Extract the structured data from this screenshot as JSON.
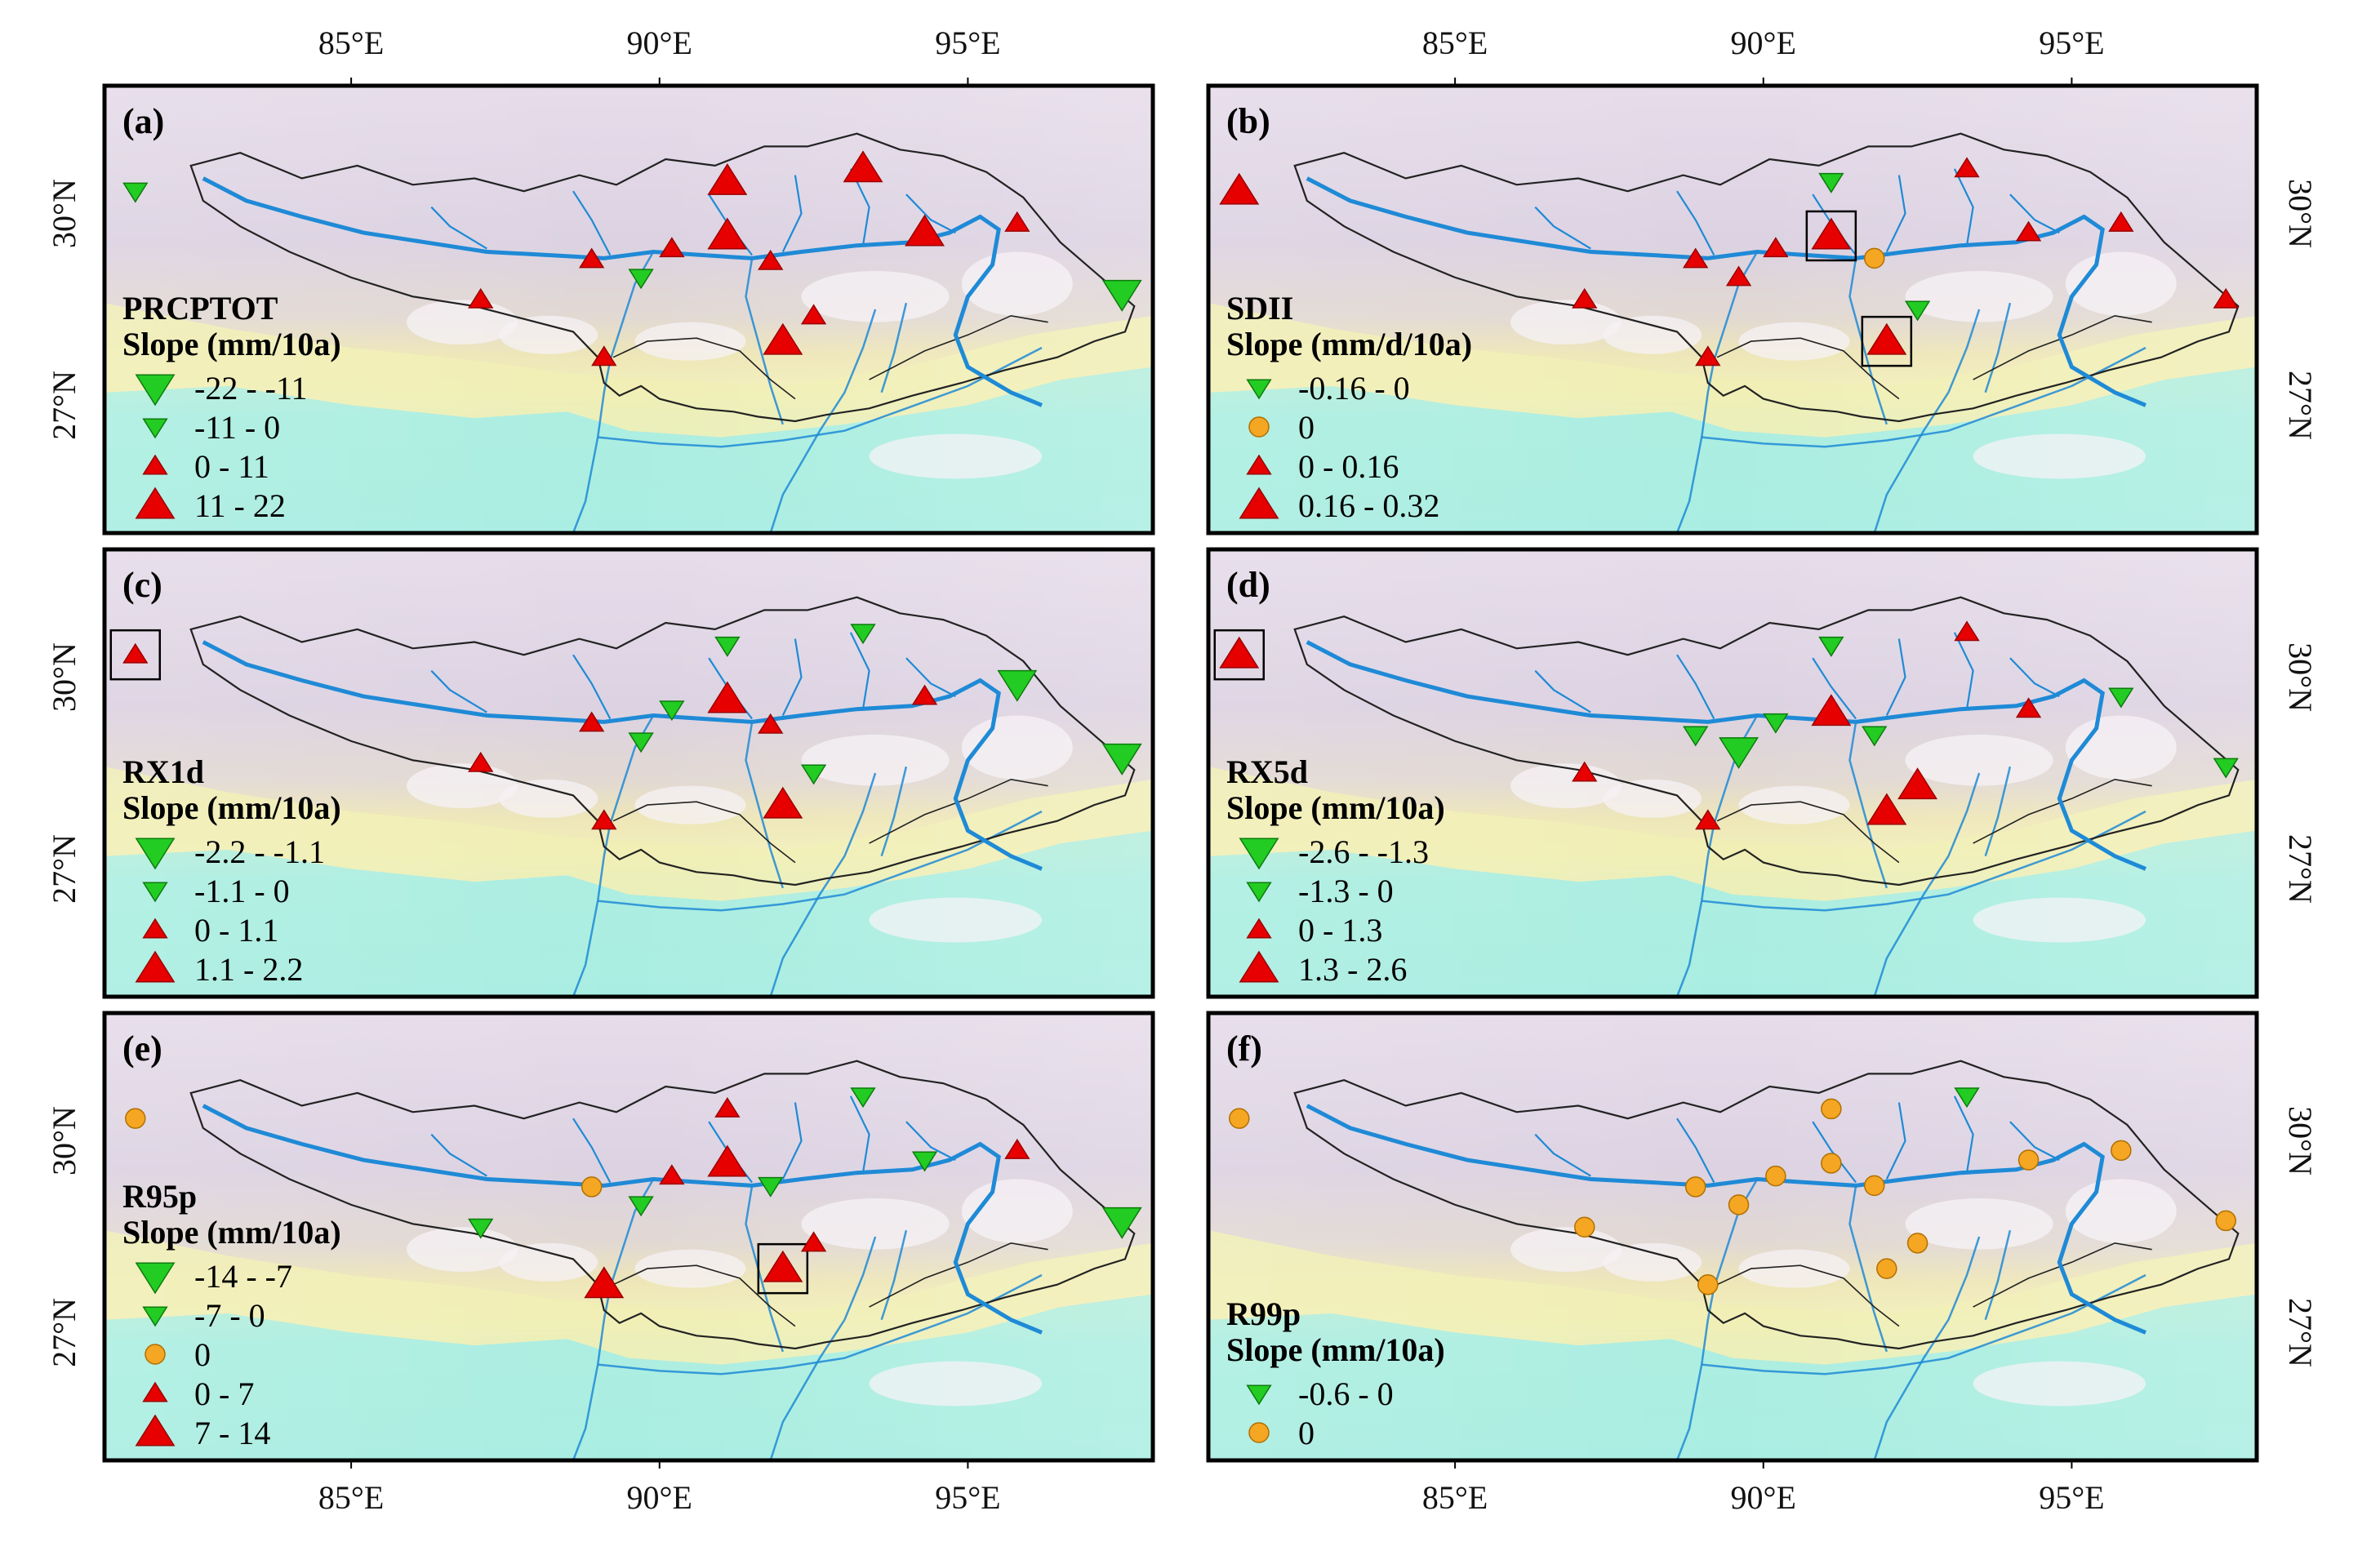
{
  "axes": {
    "lon_ticks": [
      {
        "label": "85°E",
        "lon": 85
      },
      {
        "label": "90°E",
        "lon": 90
      },
      {
        "label": "95°E",
        "lon": 95
      }
    ],
    "lat_ticks": [
      {
        "label": "30°N",
        "lat": 30
      },
      {
        "label": "27°N",
        "lat": 27
      }
    ],
    "lon_range": [
      81,
      98
    ],
    "lat_range": [
      25,
      32
    ]
  },
  "colors": {
    "increase": "#e60000",
    "decrease": "#22cc22",
    "zero": "#f5a623",
    "river": "#1f8ad6",
    "boundary": "#222222",
    "frame": "#000000"
  },
  "panels": [
    {
      "letter": "(a)",
      "title_lines": [
        "PRCPTOT",
        "Slope (mm/10a)"
      ],
      "legend_position": "lower-left",
      "legend": [
        {
          "symbol": "down",
          "size": "large",
          "label": "-22 - -11"
        },
        {
          "symbol": "down",
          "size": "small",
          "label": "-11 - 0"
        },
        {
          "symbol": "up",
          "size": "small",
          "label": "0 - 11"
        },
        {
          "symbol": "up",
          "size": "large",
          "label": "11 - 22"
        }
      ],
      "stations": [
        {
          "lon": 81.5,
          "lat": 30.35,
          "symbol": "down",
          "size": "small",
          "sig": false
        },
        {
          "lon": 87.1,
          "lat": 28.65,
          "symbol": "up",
          "size": "small",
          "sig": false
        },
        {
          "lon": 88.9,
          "lat": 29.28,
          "symbol": "up",
          "size": "small",
          "sig": false
        },
        {
          "lon": 89.7,
          "lat": 29.0,
          "symbol": "down",
          "size": "small",
          "sig": false
        },
        {
          "lon": 90.2,
          "lat": 29.45,
          "symbol": "up",
          "size": "small",
          "sig": false
        },
        {
          "lon": 89.1,
          "lat": 27.75,
          "symbol": "up",
          "size": "small",
          "sig": false
        },
        {
          "lon": 91.1,
          "lat": 30.5,
          "symbol": "up",
          "size": "large",
          "sig": false
        },
        {
          "lon": 91.1,
          "lat": 29.65,
          "symbol": "up",
          "size": "large",
          "sig": false
        },
        {
          "lon": 91.8,
          "lat": 29.25,
          "symbol": "up",
          "size": "small",
          "sig": false
        },
        {
          "lon": 92.0,
          "lat": 28.0,
          "symbol": "up",
          "size": "large",
          "sig": false
        },
        {
          "lon": 92.5,
          "lat": 28.4,
          "symbol": "up",
          "size": "small",
          "sig": false
        },
        {
          "lon": 93.3,
          "lat": 30.7,
          "symbol": "up",
          "size": "large",
          "sig": false
        },
        {
          "lon": 94.3,
          "lat": 29.7,
          "symbol": "up",
          "size": "large",
          "sig": false
        },
        {
          "lon": 95.8,
          "lat": 29.85,
          "symbol": "up",
          "size": "small",
          "sig": false
        },
        {
          "lon": 97.5,
          "lat": 28.75,
          "symbol": "down",
          "size": "large",
          "sig": false
        }
      ]
    },
    {
      "letter": "(b)",
      "title_lines": [
        "SDII",
        "Slope (mm/d/10a)"
      ],
      "legend_position": "lower-left",
      "legend": [
        {
          "symbol": "down",
          "size": "small",
          "label": "-0.16 - 0"
        },
        {
          "symbol": "circle",
          "size": "small",
          "label": "0"
        },
        {
          "symbol": "up",
          "size": "small",
          "label": "0 - 0.16"
        },
        {
          "symbol": "up",
          "size": "large",
          "label": "0.16 - 0.32"
        }
      ],
      "stations": [
        {
          "lon": 81.5,
          "lat": 30.35,
          "symbol": "up",
          "size": "large",
          "sig": false
        },
        {
          "lon": 87.1,
          "lat": 28.65,
          "symbol": "up",
          "size": "small",
          "sig": false
        },
        {
          "lon": 88.9,
          "lat": 29.28,
          "symbol": "up",
          "size": "small",
          "sig": false
        },
        {
          "lon": 89.6,
          "lat": 29.0,
          "symbol": "up",
          "size": "small",
          "sig": false
        },
        {
          "lon": 90.2,
          "lat": 29.45,
          "symbol": "up",
          "size": "small",
          "sig": false
        },
        {
          "lon": 89.1,
          "lat": 27.75,
          "symbol": "up",
          "size": "small",
          "sig": false
        },
        {
          "lon": 91.1,
          "lat": 30.5,
          "symbol": "down",
          "size": "small",
          "sig": false
        },
        {
          "lon": 91.1,
          "lat": 29.65,
          "symbol": "up",
          "size": "large",
          "sig": true
        },
        {
          "lon": 91.8,
          "lat": 29.3,
          "symbol": "circle",
          "size": "small",
          "sig": false
        },
        {
          "lon": 92.0,
          "lat": 28.0,
          "symbol": "up",
          "size": "large",
          "sig": true
        },
        {
          "lon": 92.5,
          "lat": 28.5,
          "symbol": "down",
          "size": "small",
          "sig": false
        },
        {
          "lon": 93.3,
          "lat": 30.7,
          "symbol": "up",
          "size": "small",
          "sig": false
        },
        {
          "lon": 94.3,
          "lat": 29.7,
          "symbol": "up",
          "size": "small",
          "sig": false
        },
        {
          "lon": 95.8,
          "lat": 29.85,
          "symbol": "up",
          "size": "small",
          "sig": false
        },
        {
          "lon": 97.5,
          "lat": 28.65,
          "symbol": "up",
          "size": "small",
          "sig": false
        }
      ]
    },
    {
      "letter": "(c)",
      "title_lines": [
        "RX1d",
        "Slope (mm/10a)"
      ],
      "legend_position": "lower-left",
      "legend": [
        {
          "symbol": "down",
          "size": "large",
          "label": "-2.2 - -1.1"
        },
        {
          "symbol": "down",
          "size": "small",
          "label": "-1.1 - 0"
        },
        {
          "symbol": "up",
          "size": "small",
          "label": "0 - 1.1"
        },
        {
          "symbol": "up",
          "size": "large",
          "label": "1.1 - 2.2"
        }
      ],
      "stations": [
        {
          "lon": 81.5,
          "lat": 30.35,
          "symbol": "up",
          "size": "small",
          "sig": true
        },
        {
          "lon": 87.1,
          "lat": 28.65,
          "symbol": "up",
          "size": "small",
          "sig": false
        },
        {
          "lon": 88.9,
          "lat": 29.28,
          "symbol": "up",
          "size": "small",
          "sig": false
        },
        {
          "lon": 89.7,
          "lat": 29.0,
          "symbol": "down",
          "size": "small",
          "sig": false
        },
        {
          "lon": 90.2,
          "lat": 29.5,
          "symbol": "down",
          "size": "small",
          "sig": false
        },
        {
          "lon": 89.1,
          "lat": 27.75,
          "symbol": "up",
          "size": "small",
          "sig": false
        },
        {
          "lon": 91.1,
          "lat": 30.5,
          "symbol": "down",
          "size": "small",
          "sig": false
        },
        {
          "lon": 91.1,
          "lat": 29.65,
          "symbol": "up",
          "size": "large",
          "sig": false
        },
        {
          "lon": 91.8,
          "lat": 29.25,
          "symbol": "up",
          "size": "small",
          "sig": false
        },
        {
          "lon": 92.0,
          "lat": 28.0,
          "symbol": "up",
          "size": "large",
          "sig": false
        },
        {
          "lon": 92.5,
          "lat": 28.5,
          "symbol": "down",
          "size": "small",
          "sig": false
        },
        {
          "lon": 93.3,
          "lat": 30.7,
          "symbol": "down",
          "size": "small",
          "sig": false
        },
        {
          "lon": 94.3,
          "lat": 29.7,
          "symbol": "up",
          "size": "small",
          "sig": false
        },
        {
          "lon": 95.8,
          "lat": 29.9,
          "symbol": "down",
          "size": "large",
          "sig": false
        },
        {
          "lon": 97.5,
          "lat": 28.75,
          "symbol": "down",
          "size": "large",
          "sig": false
        }
      ]
    },
    {
      "letter": "(d)",
      "title_lines": [
        "RX5d",
        "Slope (mm/10a)"
      ],
      "legend_position": "lower-left",
      "legend": [
        {
          "symbol": "down",
          "size": "large",
          "label": "-2.6 - -1.3"
        },
        {
          "symbol": "down",
          "size": "small",
          "label": "-1.3 - 0"
        },
        {
          "symbol": "up",
          "size": "small",
          "label": "0 - 1.3"
        },
        {
          "symbol": "up",
          "size": "large",
          "label": "1.3 - 2.6"
        }
      ],
      "stations": [
        {
          "lon": 81.5,
          "lat": 30.35,
          "symbol": "up",
          "size": "large",
          "sig": true
        },
        {
          "lon": 87.1,
          "lat": 28.5,
          "symbol": "up",
          "size": "small",
          "sig": false
        },
        {
          "lon": 88.9,
          "lat": 29.1,
          "symbol": "down",
          "size": "small",
          "sig": false
        },
        {
          "lon": 89.6,
          "lat": 28.85,
          "symbol": "down",
          "size": "large",
          "sig": false
        },
        {
          "lon": 90.2,
          "lat": 29.3,
          "symbol": "down",
          "size": "small",
          "sig": false
        },
        {
          "lon": 89.1,
          "lat": 27.75,
          "symbol": "up",
          "size": "small",
          "sig": false
        },
        {
          "lon": 91.1,
          "lat": 30.5,
          "symbol": "down",
          "size": "small",
          "sig": false
        },
        {
          "lon": 91.1,
          "lat": 29.45,
          "symbol": "up",
          "size": "large",
          "sig": false
        },
        {
          "lon": 91.8,
          "lat": 29.1,
          "symbol": "down",
          "size": "small",
          "sig": false
        },
        {
          "lon": 92.0,
          "lat": 27.9,
          "symbol": "up",
          "size": "large",
          "sig": false
        },
        {
          "lon": 92.5,
          "lat": 28.3,
          "symbol": "up",
          "size": "large",
          "sig": false
        },
        {
          "lon": 93.3,
          "lat": 30.7,
          "symbol": "up",
          "size": "small",
          "sig": false
        },
        {
          "lon": 94.3,
          "lat": 29.5,
          "symbol": "up",
          "size": "small",
          "sig": false
        },
        {
          "lon": 95.8,
          "lat": 29.7,
          "symbol": "down",
          "size": "small",
          "sig": false
        },
        {
          "lon": 97.5,
          "lat": 28.6,
          "symbol": "down",
          "size": "small",
          "sig": false
        }
      ]
    },
    {
      "letter": "(e)",
      "title_lines": [
        "R95p",
        "Slope (mm/10a)"
      ],
      "legend_position": "lower-left",
      "legend": [
        {
          "symbol": "down",
          "size": "large",
          "label": "-14 - -7"
        },
        {
          "symbol": "down",
          "size": "small",
          "label": "-7 - 0"
        },
        {
          "symbol": "circle",
          "size": "small",
          "label": "0"
        },
        {
          "symbol": "up",
          "size": "small",
          "label": "0 - 7"
        },
        {
          "symbol": "up",
          "size": "large",
          "label": "7 - 14"
        }
      ],
      "stations": [
        {
          "lon": 81.5,
          "lat": 30.35,
          "symbol": "circle",
          "size": "small",
          "sig": false
        },
        {
          "lon": 87.1,
          "lat": 28.65,
          "symbol": "down",
          "size": "small",
          "sig": false
        },
        {
          "lon": 88.9,
          "lat": 29.28,
          "symbol": "circle",
          "size": "small",
          "sig": false
        },
        {
          "lon": 89.7,
          "lat": 29.0,
          "symbol": "down",
          "size": "small",
          "sig": false
        },
        {
          "lon": 90.2,
          "lat": 29.45,
          "symbol": "up",
          "size": "small",
          "sig": false
        },
        {
          "lon": 89.1,
          "lat": 27.75,
          "symbol": "up",
          "size": "large",
          "sig": false
        },
        {
          "lon": 91.1,
          "lat": 30.5,
          "symbol": "up",
          "size": "small",
          "sig": false
        },
        {
          "lon": 91.1,
          "lat": 29.65,
          "symbol": "up",
          "size": "large",
          "sig": false
        },
        {
          "lon": 91.8,
          "lat": 29.3,
          "symbol": "down",
          "size": "small",
          "sig": false
        },
        {
          "lon": 92.0,
          "lat": 28.0,
          "symbol": "up",
          "size": "large",
          "sig": true
        },
        {
          "lon": 92.5,
          "lat": 28.4,
          "symbol": "up",
          "size": "small",
          "sig": false
        },
        {
          "lon": 93.3,
          "lat": 30.7,
          "symbol": "down",
          "size": "small",
          "sig": false
        },
        {
          "lon": 94.3,
          "lat": 29.7,
          "symbol": "down",
          "size": "small",
          "sig": false
        },
        {
          "lon": 95.8,
          "lat": 29.85,
          "symbol": "up",
          "size": "small",
          "sig": false
        },
        {
          "lon": 97.5,
          "lat": 28.75,
          "symbol": "down",
          "size": "large",
          "sig": false
        }
      ]
    },
    {
      "letter": "(f)",
      "title_lines": [
        "R99p",
        "Slope (mm/10a)"
      ],
      "legend_position": "lower-left",
      "legend": [
        {
          "symbol": "down",
          "size": "small",
          "label": "-0.6 - 0"
        },
        {
          "symbol": "circle",
          "size": "small",
          "label": "0"
        }
      ],
      "stations": [
        {
          "lon": 81.5,
          "lat": 30.35,
          "symbol": "circle",
          "size": "small",
          "sig": false
        },
        {
          "lon": 87.1,
          "lat": 28.65,
          "symbol": "circle",
          "size": "small",
          "sig": false
        },
        {
          "lon": 88.9,
          "lat": 29.28,
          "symbol": "circle",
          "size": "small",
          "sig": false
        },
        {
          "lon": 89.6,
          "lat": 29.0,
          "symbol": "circle",
          "size": "small",
          "sig": false
        },
        {
          "lon": 90.2,
          "lat": 29.45,
          "symbol": "circle",
          "size": "small",
          "sig": false
        },
        {
          "lon": 89.1,
          "lat": 27.75,
          "symbol": "circle",
          "size": "small",
          "sig": false
        },
        {
          "lon": 91.1,
          "lat": 30.5,
          "symbol": "circle",
          "size": "small",
          "sig": false
        },
        {
          "lon": 91.1,
          "lat": 29.65,
          "symbol": "circle",
          "size": "small",
          "sig": false
        },
        {
          "lon": 91.8,
          "lat": 29.3,
          "symbol": "circle",
          "size": "small",
          "sig": false
        },
        {
          "lon": 92.0,
          "lat": 28.0,
          "symbol": "circle",
          "size": "small",
          "sig": false
        },
        {
          "lon": 92.5,
          "lat": 28.4,
          "symbol": "circle",
          "size": "small",
          "sig": false
        },
        {
          "lon": 93.3,
          "lat": 30.7,
          "symbol": "down",
          "size": "small",
          "sig": false
        },
        {
          "lon": 94.3,
          "lat": 29.7,
          "symbol": "circle",
          "size": "small",
          "sig": false
        },
        {
          "lon": 95.8,
          "lat": 29.85,
          "symbol": "circle",
          "size": "small",
          "sig": false
        },
        {
          "lon": 97.5,
          "lat": 28.75,
          "symbol": "circle",
          "size": "small",
          "sig": false
        }
      ]
    }
  ]
}
